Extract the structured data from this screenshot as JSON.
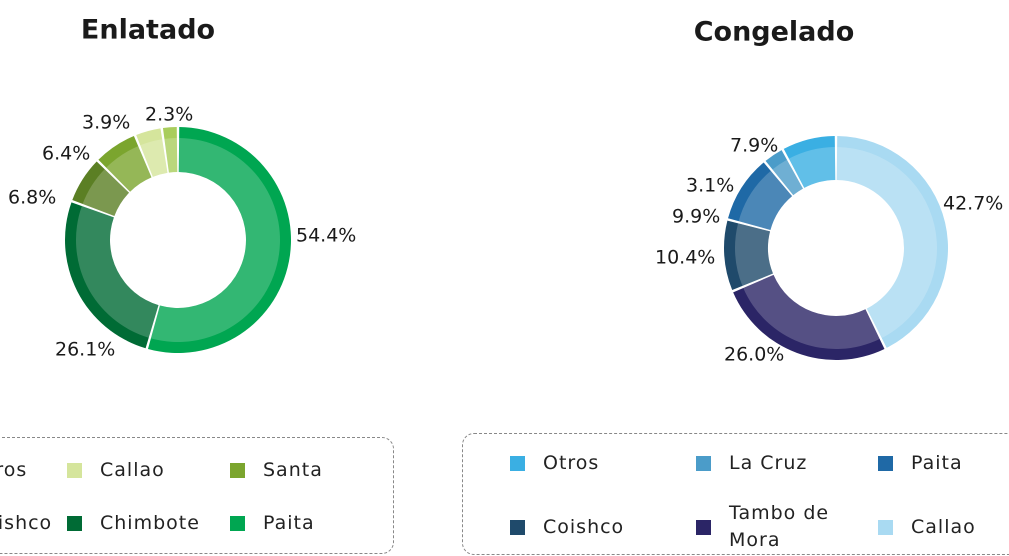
{
  "chart_data": [
    {
      "type": "donut",
      "title": "Enlatado",
      "categories": [
        "Paita",
        "Chimbote",
        "Coishco",
        "Santa",
        "Callao",
        "Otros"
      ],
      "values": [
        54.4,
        26.1,
        6.8,
        6.4,
        3.9,
        2.3
      ],
      "value_labels": [
        "54.4%",
        "26.1%",
        "6.8%",
        "6.4%",
        "3.9%",
        "2.3%"
      ],
      "colors": [
        "#00a651",
        "#006b35",
        "#5b7f24",
        "#7ba52e",
        "#d5e59c",
        "#a9cd5c"
      ]
    },
    {
      "type": "donut",
      "title": "Congelado",
      "categories": [
        "Callao",
        "Tambo de Mora",
        "Coishco",
        "Paita",
        "La Cruz",
        "Otros"
      ],
      "values": [
        42.7,
        26.0,
        10.4,
        9.9,
        3.1,
        7.9
      ],
      "value_labels": [
        "42.7%",
        "26.0%",
        "10.4%",
        "9.9%",
        "3.1%",
        "7.9%"
      ],
      "colors": [
        "#a9daf2",
        "#2b2566",
        "#1f4a6b",
        "#1f69a6",
        "#4b9cc9",
        "#3aafe3"
      ]
    }
  ]
}
